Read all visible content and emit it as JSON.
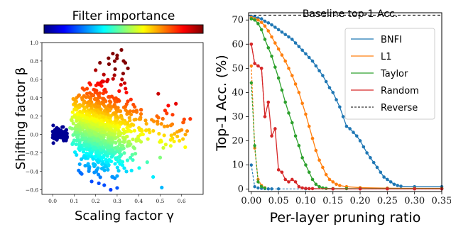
{
  "chart_data": [
    {
      "type": "scatter",
      "title": "Filter importance",
      "xlabel": "Scaling factor γ",
      "ylabel": "Shifting factor β",
      "xlim": [
        -0.05,
        0.7
      ],
      "ylim": [
        -0.65,
        1.0
      ],
      "xticks": [
        "0.0",
        "0.1",
        "0.2",
        "0.3",
        "0.4",
        "0.5",
        "0.6"
      ],
      "yticks": [
        "−0.6",
        "−0.4",
        "−0.2",
        "0.0",
        "0.2",
        "0.4",
        "0.6",
        "0.8",
        "1.0"
      ],
      "xtick_values": [
        0,
        0.1,
        0.2,
        0.3,
        0.4,
        0.5,
        0.6
      ],
      "ytick_values": [
        -0.6,
        -0.4,
        -0.2,
        0,
        0.2,
        0.4,
        0.6,
        0.8,
        1.0
      ],
      "colormap": "jet",
      "colorbar": {
        "orientation": "horizontal",
        "placement": "top"
      },
      "clusters": [
        {
          "gamma_range": [
            0.0,
            0.07
          ],
          "beta_mean": 0.0,
          "beta_spread": 0.04
        },
        {
          "gamma_range": [
            0.08,
            0.42
          ],
          "beta_mean": 0.05,
          "beta_spread": 0.22
        },
        {
          "gamma_range": [
            0.4,
            0.65
          ],
          "beta_mean": 0.05,
          "beta_spread": 0.15
        }
      ],
      "outliers": [
        {
          "x": 0.32,
          "y": 0.92
        },
        {
          "x": 0.28,
          "y": 0.88
        },
        {
          "x": 0.3,
          "y": 0.86
        },
        {
          "x": 0.26,
          "y": 0.83
        },
        {
          "x": 0.33,
          "y": 0.8
        },
        {
          "x": 0.22,
          "y": 0.78
        },
        {
          "x": 0.2,
          "y": 0.7
        },
        {
          "x": 0.35,
          "y": 0.72
        },
        {
          "x": 0.64,
          "y": 0.17
        },
        {
          "x": 0.6,
          "y": 0.05
        },
        {
          "x": 0.55,
          "y": 0.1
        },
        {
          "x": 0.58,
          "y": -0.02
        },
        {
          "x": 0.44,
          "y": -0.3
        },
        {
          "x": 0.5,
          "y": -0.25
        },
        {
          "x": 0.27,
          "y": -0.6
        },
        {
          "x": 0.3,
          "y": -0.58
        },
        {
          "x": 0.24,
          "y": -0.55
        },
        {
          "x": 0.1,
          "y": 0.38
        },
        {
          "x": 0.12,
          "y": 0.42
        },
        {
          "x": 0.3,
          "y": -0.45
        }
      ]
    },
    {
      "type": "line",
      "xlabel": "Per-layer pruning ratio",
      "ylabel": "Top-1 Acc. (%)",
      "xlim": [
        -0.005,
        0.35
      ],
      "ylim": [
        -1,
        73
      ],
      "xticks": [
        "0.00",
        "0.05",
        "0.10",
        "0.15",
        "0.20",
        "0.25",
        "0.30",
        "0.35"
      ],
      "yticks": [
        "0",
        "10",
        "20",
        "30",
        "40",
        "50",
        "60",
        "70"
      ],
      "xtick_values": [
        0,
        0.05,
        0.1,
        0.15,
        0.2,
        0.25,
        0.3,
        0.35
      ],
      "ytick_values": [
        0,
        10,
        20,
        30,
        40,
        50,
        60,
        70
      ],
      "baseline": {
        "label": "Baseline top-1 Acc.",
        "value": 72
      },
      "legend_position": "top-right",
      "series": [
        {
          "name": "BNFI",
          "color": "#1f77b4",
          "x": [
            0,
            0.00625,
            0.0125,
            0.01875,
            0.025,
            0.03125,
            0.0375,
            0.04375,
            0.05,
            0.05625,
            0.0625,
            0.06875,
            0.075,
            0.08125,
            0.0875,
            0.09375,
            0.1,
            0.10625,
            0.1125,
            0.11875,
            0.125,
            0.13125,
            0.1375,
            0.14375,
            0.15,
            0.15625,
            0.1625,
            0.16875,
            0.175,
            0.18125,
            0.1875,
            0.19375,
            0.2,
            0.20625,
            0.2125,
            0.21875,
            0.225,
            0.23125,
            0.2375,
            0.24375,
            0.25,
            0.25625,
            0.2625,
            0.26875,
            0.275,
            0.3,
            0.35
          ],
          "y": [
            71.5,
            71.3,
            70.8,
            70.5,
            69.5,
            68.8,
            68,
            67,
            66,
            65,
            64,
            63,
            62,
            60.5,
            59,
            57.5,
            56,
            54.5,
            53,
            51,
            49,
            47,
            44.5,
            42,
            40,
            37,
            34,
            30,
            26,
            25,
            23.5,
            22,
            20,
            17.5,
            15,
            13,
            11,
            9,
            7,
            5,
            4,
            3,
            2,
            1.5,
            1.2,
            1,
            1
          ]
        },
        {
          "name": "L1",
          "color": "#ff7f0e",
          "x": [
            0,
            0.00625,
            0.0125,
            0.01875,
            0.025,
            0.03125,
            0.0375,
            0.04375,
            0.05,
            0.05625,
            0.0625,
            0.06875,
            0.075,
            0.08125,
            0.0875,
            0.09375,
            0.1,
            0.10625,
            0.1125,
            0.11875,
            0.125,
            0.13125,
            0.1375,
            0.14375,
            0.15,
            0.15625,
            0.1625,
            0.175,
            0.2,
            0.25,
            0.3,
            0.35
          ],
          "y": [
            71,
            70.5,
            70,
            69,
            67.5,
            65.5,
            63,
            60.5,
            58,
            55.5,
            53,
            50,
            47,
            43.5,
            40,
            35.5,
            31,
            26,
            21,
            16,
            12,
            9,
            6,
            4,
            3,
            2,
            1.5,
            1,
            0.6,
            0.4,
            0.3,
            0.3
          ]
        },
        {
          "name": "Taylor",
          "color": "#2ca02c",
          "x": [
            0,
            0.00625,
            0.0125,
            0.01875,
            0.025,
            0.03125,
            0.0375,
            0.04375,
            0.05,
            0.05625,
            0.0625,
            0.06875,
            0.075,
            0.08125,
            0.0875,
            0.09375,
            0.1,
            0.10625,
            0.1125,
            0.11875,
            0.125,
            0.13125,
            0.1375,
            0.15,
            0.175,
            0.2,
            0.25,
            0.3,
            0.35
          ],
          "y": [
            70.5,
            70,
            68.5,
            66,
            62,
            58.5,
            55,
            50.5,
            46,
            41,
            36,
            31.5,
            27.5,
            22,
            18,
            13,
            10,
            7,
            4,
            2,
            1,
            0.5,
            0.3,
            0.2,
            0.2,
            0.2,
            0.2,
            0.2,
            0.2
          ]
        },
        {
          "name": "Random",
          "color": "#d62728",
          "x": [
            0,
            0.00625,
            0.0125,
            0.01875,
            0.025,
            0.03125,
            0.0375,
            0.04375,
            0.05,
            0.05625,
            0.0625,
            0.06875,
            0.075,
            0.08125,
            0.0875,
            0.09375,
            0.1,
            0.10625,
            0.1125,
            0.15,
            0.2,
            0.25,
            0.3,
            0.35
          ],
          "y": [
            60,
            52,
            51,
            50,
            30,
            36,
            22,
            25,
            8,
            7,
            4,
            3,
            4,
            3,
            1,
            0.5,
            0.3,
            0.2,
            0.2,
            0.1,
            0.1,
            0.1,
            0.1,
            0.1
          ]
        },
        {
          "name": "Reverse",
          "style": "dashed",
          "x": [
            0,
            0.00625,
            0.0125,
            0.01875,
            0.025,
            0.03125,
            0.0375,
            0.05,
            0.1,
            0.15,
            0.2,
            0.25,
            0.3,
            0.35
          ],
          "start_values": [
            {
              "series": "BNFI",
              "y": [
                10,
                1,
                0.5,
                0.3,
                0.2
              ]
            },
            {
              "series": "L1",
              "y": [
                51,
                17,
                4,
                1.5,
                0.6
              ]
            },
            {
              "series": "Taylor",
              "y": [
                44,
                18,
                3,
                1,
                0.4
              ]
            },
            {
              "series": "Random",
              "y": [
                60,
                52,
                51,
                50,
                30
              ]
            }
          ]
        }
      ]
    }
  ]
}
